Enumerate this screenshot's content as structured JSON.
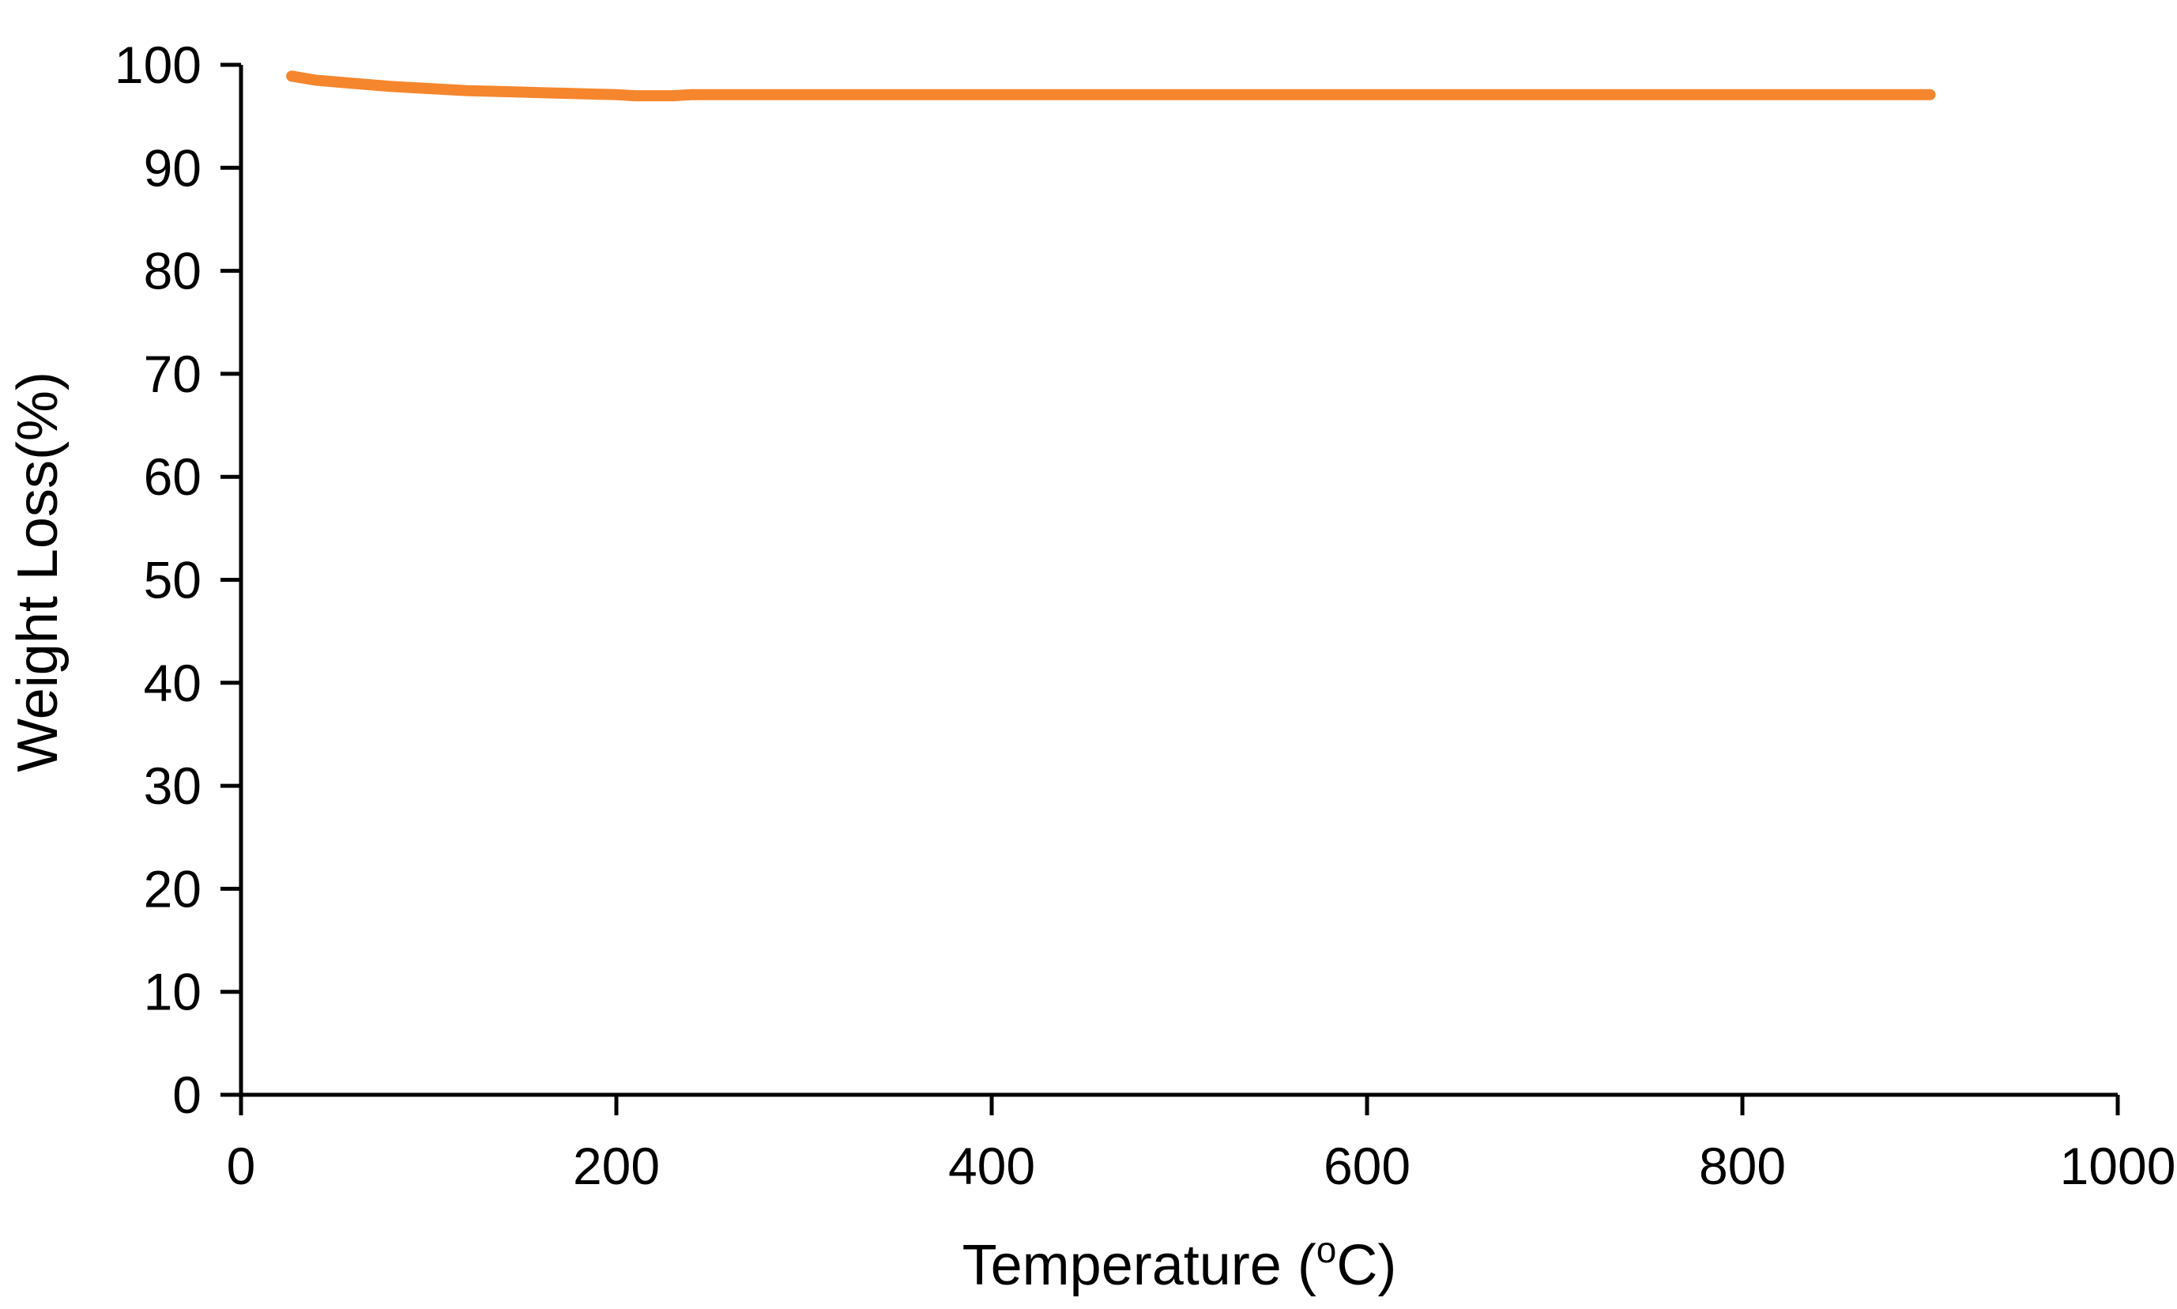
{
  "chart_data": {
    "type": "line",
    "xlabel": "Temperature (",
    "xlabel_sup": "o",
    "xlabel_end": "C)",
    "ylabel": "Weight Loss(%)",
    "xlim": [
      0,
      1000
    ],
    "ylim": [
      0,
      100
    ],
    "x_ticks": [
      "0",
      "200",
      "400",
      "600",
      "800",
      "1000"
    ],
    "y_ticks": [
      "0",
      "10",
      "20",
      "30",
      "40",
      "50",
      "60",
      "70",
      "80",
      "90",
      "100"
    ],
    "grid": false,
    "legend": "none",
    "series": [
      {
        "color": "#f5862e",
        "x": [
          27,
          40,
          60,
          80,
          100,
          120,
          140,
          160,
          180,
          200,
          210,
          220,
          230,
          240,
          260,
          300,
          400,
          500,
          600,
          700,
          800,
          900
        ],
        "y": [
          98.9,
          98.5,
          98.2,
          97.9,
          97.7,
          97.5,
          97.4,
          97.3,
          97.2,
          97.1,
          97.0,
          97.0,
          97.0,
          97.1,
          97.1,
          97.1,
          97.1,
          97.1,
          97.1,
          97.1,
          97.1,
          97.1
        ]
      }
    ]
  }
}
